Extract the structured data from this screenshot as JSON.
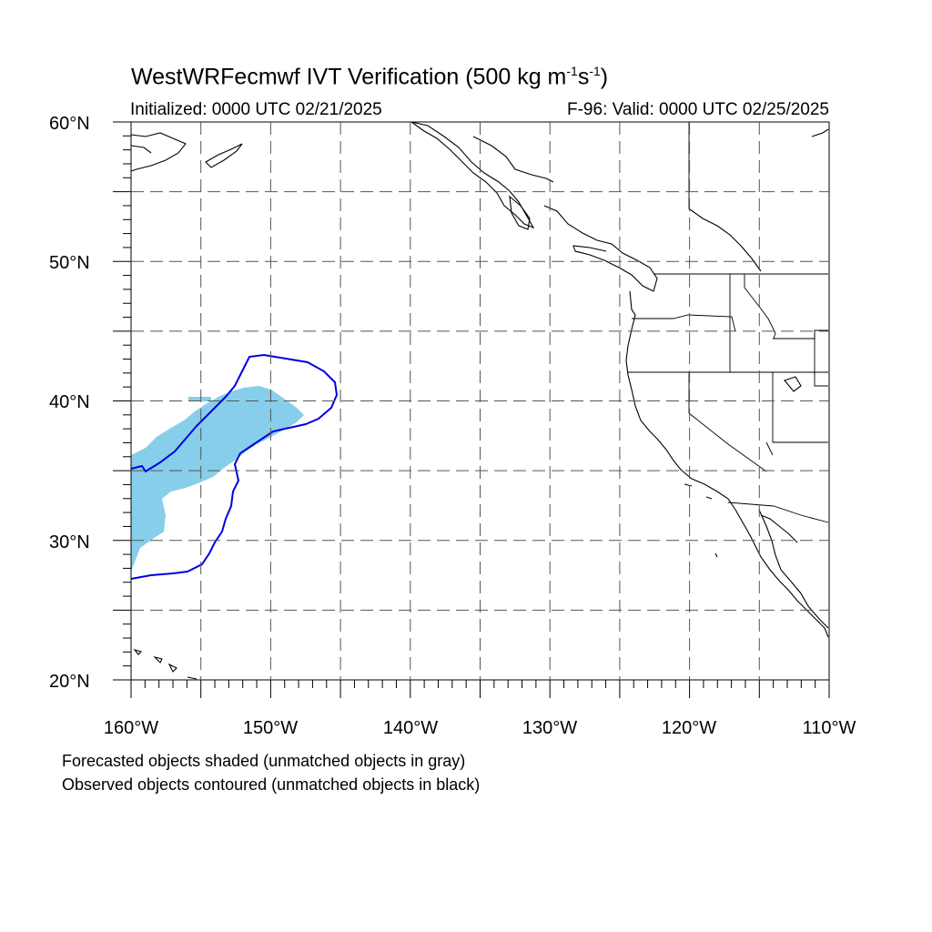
{
  "title": {
    "main": "WestWRFecmwf IVT Verification (500 kg m",
    "exp1": "-1",
    "mid": "s",
    "exp2": "-1",
    "close": ")"
  },
  "subtitle_left": "Initialized: 0000 UTC 02/21/2025",
  "subtitle_right": "F-96: Valid: 0000 UTC 02/25/2025",
  "notes": [
    "Forecasted objects shaded (unmatched objects in gray)",
    "Observed objects contoured (unmatched objects in black)"
  ],
  "lat_labels": [
    "60°N",
    "50°N",
    "40°N",
    "30°N",
    "20°N"
  ],
  "lon_labels": [
    "160°W",
    "150°W",
    "140°W",
    "130°W",
    "120°W",
    "110°W"
  ],
  "colors": {
    "forecast_fill": "#87ceeb",
    "observed_contour": "#0000e0",
    "coastline": "#000000",
    "grid": "#555555"
  }
}
